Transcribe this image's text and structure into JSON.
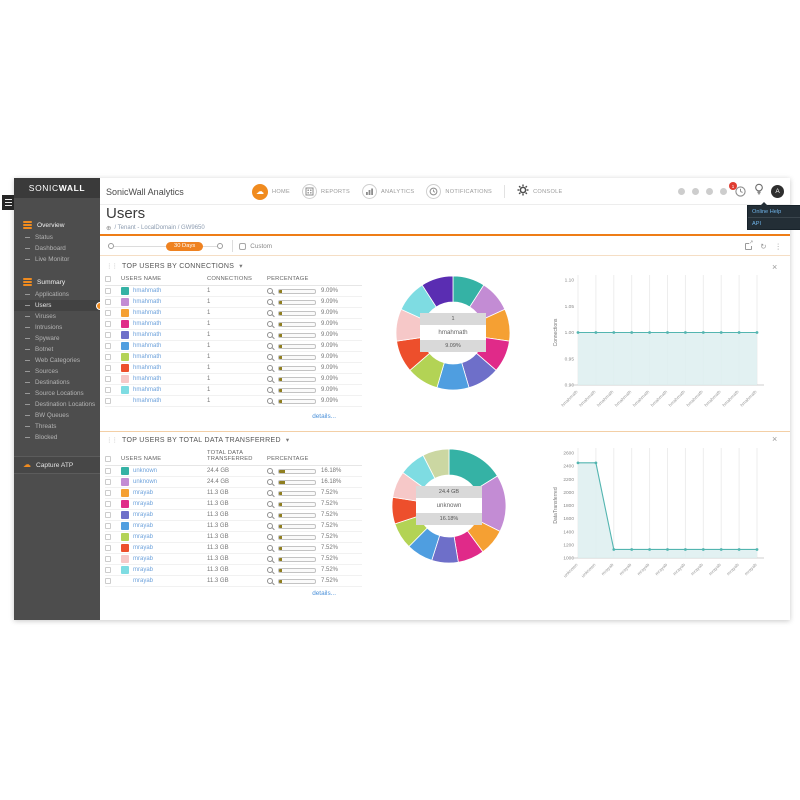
{
  "brand": {
    "logo_primary": "SONIC",
    "logo_secondary": "WALL",
    "product_title": "SonicWall Analytics"
  },
  "topnav": {
    "home": "HOME",
    "reports": "REPORTS",
    "analytics": "ANALYTICS",
    "notifications": "NOTIFICATIONS",
    "console": "CONSOLE",
    "notification_badge": "1",
    "avatar_initial": "A",
    "help_menu": {
      "items": [
        "Online Help",
        "API"
      ]
    }
  },
  "sidebar": {
    "overview": {
      "label": "Overview",
      "items": [
        "Status",
        "Dashboard",
        "Live Monitor"
      ]
    },
    "summary": {
      "label": "Summary",
      "active_item": "Users",
      "items": [
        "Applications",
        "Users",
        "Viruses",
        "Intrusions",
        "Spyware",
        "Botnet",
        "Web Categories",
        "Sources",
        "Destinations",
        "Source Locations",
        "Destination Locations",
        "BW Queues",
        "Threats",
        "Blocked"
      ]
    },
    "footer": {
      "label": "Capture ATP"
    }
  },
  "page": {
    "title": "Users",
    "breadcrumb": "/ Tenant - LocalDomain / GW9650"
  },
  "timebar": {
    "range_label": "30 Days",
    "custom_label": "Custom"
  },
  "icons": {
    "close": "×",
    "caret_down": "▾",
    "kebab": "⋮",
    "refresh": "↻",
    "drag_handle": "⋮⋮",
    "cloud": "☁",
    "globe": "⊕"
  },
  "colors": {
    "accent_orange": "#ef8220",
    "link_blue": "#4a90d9",
    "bar_fill": "#8f7e1f",
    "chart_teal": "#53b5b0",
    "chart_fill": "#ddeff0"
  },
  "sections": [
    {
      "title": "TOP USERS BY CONNECTIONS",
      "table": {
        "headers": {
          "users": "USERS NAME",
          "value": "CONNECTIONS",
          "percentage": "PERCENTAGE"
        },
        "rows": [
          {
            "name": "hmahmath",
            "swatch": "#35b2a5",
            "value": "1",
            "pct": "9.09%",
            "pct_value": 9.09
          },
          {
            "name": "hmahmath",
            "swatch": "#c38cd4",
            "value": "1",
            "pct": "9.09%",
            "pct_value": 9.09
          },
          {
            "name": "hmahmath",
            "swatch": "#f5a033",
            "value": "1",
            "pct": "9.09%",
            "pct_value": 9.09
          },
          {
            "name": "hmahmath",
            "swatch": "#e02a89",
            "value": "1",
            "pct": "9.09%",
            "pct_value": 9.09
          },
          {
            "name": "hmahmath",
            "swatch": "#6e6fc9",
            "value": "1",
            "pct": "9.09%",
            "pct_value": 9.09
          },
          {
            "name": "hmahmath",
            "swatch": "#4f9ee0",
            "value": "1",
            "pct": "9.09%",
            "pct_value": 9.09
          },
          {
            "name": "hmahmath",
            "swatch": "#b3d355",
            "value": "1",
            "pct": "9.09%",
            "pct_value": 9.09
          },
          {
            "name": "hmahmath",
            "swatch": "#ed4f2c",
            "value": "1",
            "pct": "9.09%",
            "pct_value": 9.09
          },
          {
            "name": "hmahmath",
            "swatch": "#f6c8c8",
            "value": "1",
            "pct": "9.09%",
            "pct_value": 9.09
          },
          {
            "name": "hmahmath",
            "swatch": "#7edce2",
            "value": "1",
            "pct": "9.09%",
            "pct_value": 9.09
          },
          {
            "name": "hmahmath",
            "swatch": null,
            "value": "1",
            "pct": "9.09%",
            "pct_value": 9.09
          }
        ]
      },
      "details_label": "details..."
    },
    {
      "title": "TOP USERS BY TOTAL DATA TRANSFERRED",
      "table": {
        "headers": {
          "users": "USERS NAME",
          "value": "TOTAL DATA TRANSFERRED",
          "percentage": "PERCENTAGE"
        },
        "rows": [
          {
            "name": "unknown",
            "swatch": "#35b2a5",
            "value": "24.4 GB",
            "pct": "16.18%",
            "pct_value": 16.18
          },
          {
            "name": "unknown",
            "swatch": "#c38cd4",
            "value": "24.4 GB",
            "pct": "16.18%",
            "pct_value": 16.18
          },
          {
            "name": "mrayab",
            "swatch": "#f5a033",
            "value": "11.3 GB",
            "pct": "7.52%",
            "pct_value": 7.52
          },
          {
            "name": "mrayab",
            "swatch": "#e02a89",
            "value": "11.3 GB",
            "pct": "7.52%",
            "pct_value": 7.52
          },
          {
            "name": "mrayab",
            "swatch": "#6e6fc9",
            "value": "11.3 GB",
            "pct": "7.52%",
            "pct_value": 7.52
          },
          {
            "name": "mrayab",
            "swatch": "#4f9ee0",
            "value": "11.3 GB",
            "pct": "7.52%",
            "pct_value": 7.52
          },
          {
            "name": "mrayab",
            "swatch": "#b3d355",
            "value": "11.3 GB",
            "pct": "7.52%",
            "pct_value": 7.52
          },
          {
            "name": "mrayab",
            "swatch": "#ed4f2c",
            "value": "11.3 GB",
            "pct": "7.52%",
            "pct_value": 7.52
          },
          {
            "name": "mrayab",
            "swatch": "#f6c8c8",
            "value": "11.3 GB",
            "pct": "7.52%",
            "pct_value": 7.52
          },
          {
            "name": "mrayab",
            "swatch": "#7edce2",
            "value": "11.3 GB",
            "pct": "7.52%",
            "pct_value": 7.52
          },
          {
            "name": "mrayab",
            "swatch": null,
            "value": "11.3 GB",
            "pct": "7.52%",
            "pct_value": 7.52
          }
        ]
      },
      "details_label": "details..."
    }
  ],
  "chart_data": [
    {
      "id": "connections_donut",
      "type": "pie",
      "title": "TOP USERS BY CONNECTIONS",
      "labels": [
        "hmahmath",
        "hmahmath",
        "hmahmath",
        "hmahmath",
        "hmahmath",
        "hmahmath",
        "hmahmath",
        "hmahmath",
        "hmahmath",
        "hmahmath",
        "hmahmath"
      ],
      "values": [
        9.09,
        9.09,
        9.09,
        9.09,
        9.09,
        9.09,
        9.09,
        9.09,
        9.09,
        9.09,
        9.09
      ],
      "unit": "%",
      "colors": [
        "#35b2a5",
        "#c38cd4",
        "#f5a033",
        "#e02a89",
        "#6e6fc9",
        "#4f9ee0",
        "#b3d355",
        "#ed4f2c",
        "#f6c8c8",
        "#7edce2",
        "#5a2db2"
      ],
      "center_labels": [
        "1",
        "hmahmath",
        "9.09%"
      ]
    },
    {
      "id": "connections_trend",
      "type": "area",
      "title": "Connections per user",
      "ylabel": "Connections",
      "ylim": [
        0.9,
        1.1
      ],
      "ytick_values": [
        0.9,
        0.95,
        1.0,
        1.05,
        1.1
      ],
      "ytick_labels": [
        "0.90",
        "0.95",
        "1.00",
        "1.05",
        "1.10"
      ],
      "x": [
        "hmahmath",
        "hmahmath",
        "hmahmath",
        "hmahmath",
        "hmahmath",
        "hmahmath",
        "hmahmath",
        "hmahmath",
        "hmahmath",
        "hmahmath",
        "hmahmath"
      ],
      "values": [
        1.0,
        1.0,
        1.0,
        1.0,
        1.0,
        1.0,
        1.0,
        1.0,
        1.0,
        1.0,
        1.0
      ],
      "grid": true,
      "line_color": "#53b5b0",
      "fill_color": "#ddeff0"
    },
    {
      "id": "data_donut",
      "type": "pie",
      "title": "TOP USERS BY TOTAL DATA TRANSFERRED",
      "labels": [
        "unknown",
        "unknown",
        "mrayab",
        "mrayab",
        "mrayab",
        "mrayab",
        "mrayab",
        "mrayab",
        "mrayab",
        "mrayab",
        "mrayab"
      ],
      "values": [
        16.18,
        16.18,
        7.52,
        7.52,
        7.52,
        7.52,
        7.52,
        7.52,
        7.52,
        7.52,
        7.52
      ],
      "unit": "%",
      "colors": [
        "#35b2a5",
        "#c38cd4",
        "#f5a033",
        "#e02a89",
        "#6e6fc9",
        "#4f9ee0",
        "#b3d355",
        "#ed4f2c",
        "#f6c8c8",
        "#7edce2",
        "#cbd7a2"
      ],
      "center_labels": [
        "24.4 GB",
        "unknown",
        "16.18%"
      ]
    },
    {
      "id": "data_trend",
      "type": "area",
      "title": "Data transferred per user",
      "ylabel": "DataTransferred",
      "ylim": [
        1000,
        2600
      ],
      "ytick_values": [
        1000,
        1200,
        1400,
        1600,
        1800,
        2000,
        2200,
        2400,
        2600
      ],
      "ytick_labels": [
        "1000",
        "1200",
        "1400",
        "1600",
        "1800",
        "2000",
        "2200",
        "2400",
        "2600"
      ],
      "x": [
        "unknown",
        "unknown",
        "mrayab",
        "mrayab",
        "mrayab",
        "mrayab",
        "mrayab",
        "mrayab",
        "mrayab",
        "mrayab",
        "mrayab"
      ],
      "values": [
        2450,
        2450,
        1130,
        1130,
        1130,
        1130,
        1130,
        1130,
        1130,
        1130,
        1130
      ],
      "grid": true,
      "line_color": "#53b5b0",
      "fill_color": "#ddeff0"
    }
  ]
}
